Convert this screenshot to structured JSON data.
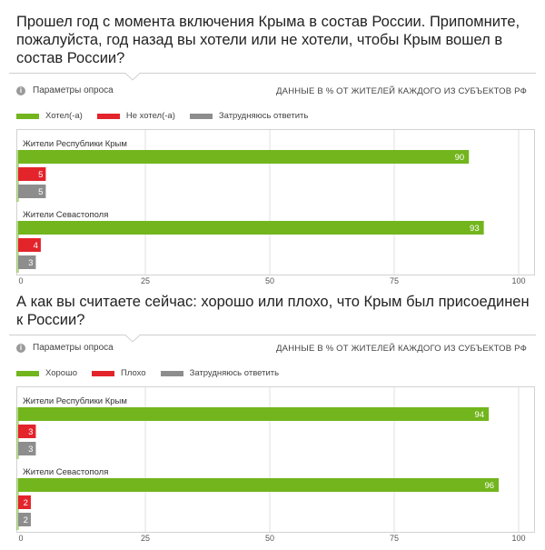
{
  "colors": {
    "green": "#72b51d",
    "red": "#e3242b",
    "gray": "#8d8d8d",
    "box": "#d2d2d2",
    "grid": "#e2e2e2"
  },
  "params_icon": "info-icon",
  "chart_data": [
    {
      "type": "bar",
      "orientation": "horizontal",
      "title": "Прошел год с момента включения Крыма в состав России. Припомните, пожалуйста, год назад вы хотели или не хотели, чтобы Крым вошел в состав России?",
      "params_label": "Параметры опроса",
      "note": "ДАННЫЕ В % ОТ ЖИТЕЛЕЙ КАЖДОГО ИЗ СУБЪЕКТОВ РФ",
      "categories": [
        "Жители Республики Крым",
        "Жители Севастополя"
      ],
      "series": [
        {
          "name": "Хотел(-а)",
          "color": "#72b51d",
          "values": [
            90,
            93
          ]
        },
        {
          "name": "Не хотел(-а)",
          "color": "#e3242b",
          "values": [
            5,
            4
          ]
        },
        {
          "name": "Затрудняюсь ответить",
          "color": "#8d8d8d",
          "values": [
            5,
            3
          ]
        }
      ],
      "xlim": [
        0,
        100
      ],
      "xticks": [
        0,
        25,
        50,
        75,
        100
      ],
      "grid": true,
      "legend": "top-left"
    },
    {
      "type": "bar",
      "orientation": "horizontal",
      "title": "А как вы считаете сейчас: хорошо или плохо, что Крым был присоединен к России?",
      "params_label": "Параметры опроса",
      "note": "ДАННЫЕ В % ОТ ЖИТЕЛЕЙ КАЖДОГО ИЗ СУБЪЕКТОВ РФ",
      "categories": [
        "Жители Республики Крым",
        "Жители Севастополя"
      ],
      "series": [
        {
          "name": "Хорошо",
          "color": "#72b51d",
          "values": [
            94,
            96
          ]
        },
        {
          "name": "Плохо",
          "color": "#e3242b",
          "values": [
            3,
            2
          ]
        },
        {
          "name": "Затрудняюсь ответить",
          "color": "#8d8d8d",
          "values": [
            3,
            2
          ]
        }
      ],
      "xlim": [
        0,
        100
      ],
      "xticks": [
        0,
        25,
        50,
        75,
        100
      ],
      "grid": true,
      "legend": "top-left"
    }
  ]
}
